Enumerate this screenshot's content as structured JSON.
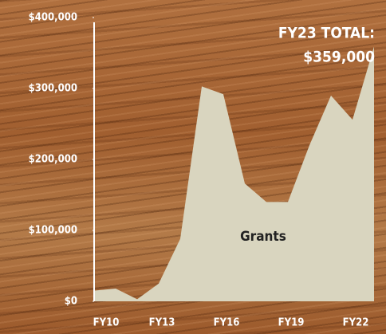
{
  "chart_data": {
    "type": "area",
    "categories": [
      "FY10",
      null,
      null,
      "FY13",
      null,
      null,
      "FY16",
      null,
      null,
      "FY19",
      null,
      null,
      "FY22",
      null
    ],
    "series": [
      {
        "name": "Grants",
        "color": "#d9d5bf",
        "values": [
          15000,
          18000,
          3000,
          25000,
          88000,
          303000,
          292000,
          166000,
          140000,
          140000,
          220000,
          290000,
          256000,
          359000
        ],
        "value_labels": [
          null,
          null,
          null,
          null,
          null,
          null,
          null,
          null,
          null,
          null,
          null,
          null,
          null,
          "$359,000"
        ]
      }
    ],
    "annotation": "FY23 TOTAL:",
    "ylim": [
      0,
      400000
    ],
    "yticks": [
      {
        "value": 0,
        "label": "$0"
      },
      {
        "value": 100000,
        "label": "$100,000"
      },
      {
        "value": 200000,
        "label": "$200,000"
      },
      {
        "value": 300000,
        "label": "$300,000"
      },
      {
        "value": 400000,
        "label": "$400,000"
      }
    ],
    "grid": false
  }
}
